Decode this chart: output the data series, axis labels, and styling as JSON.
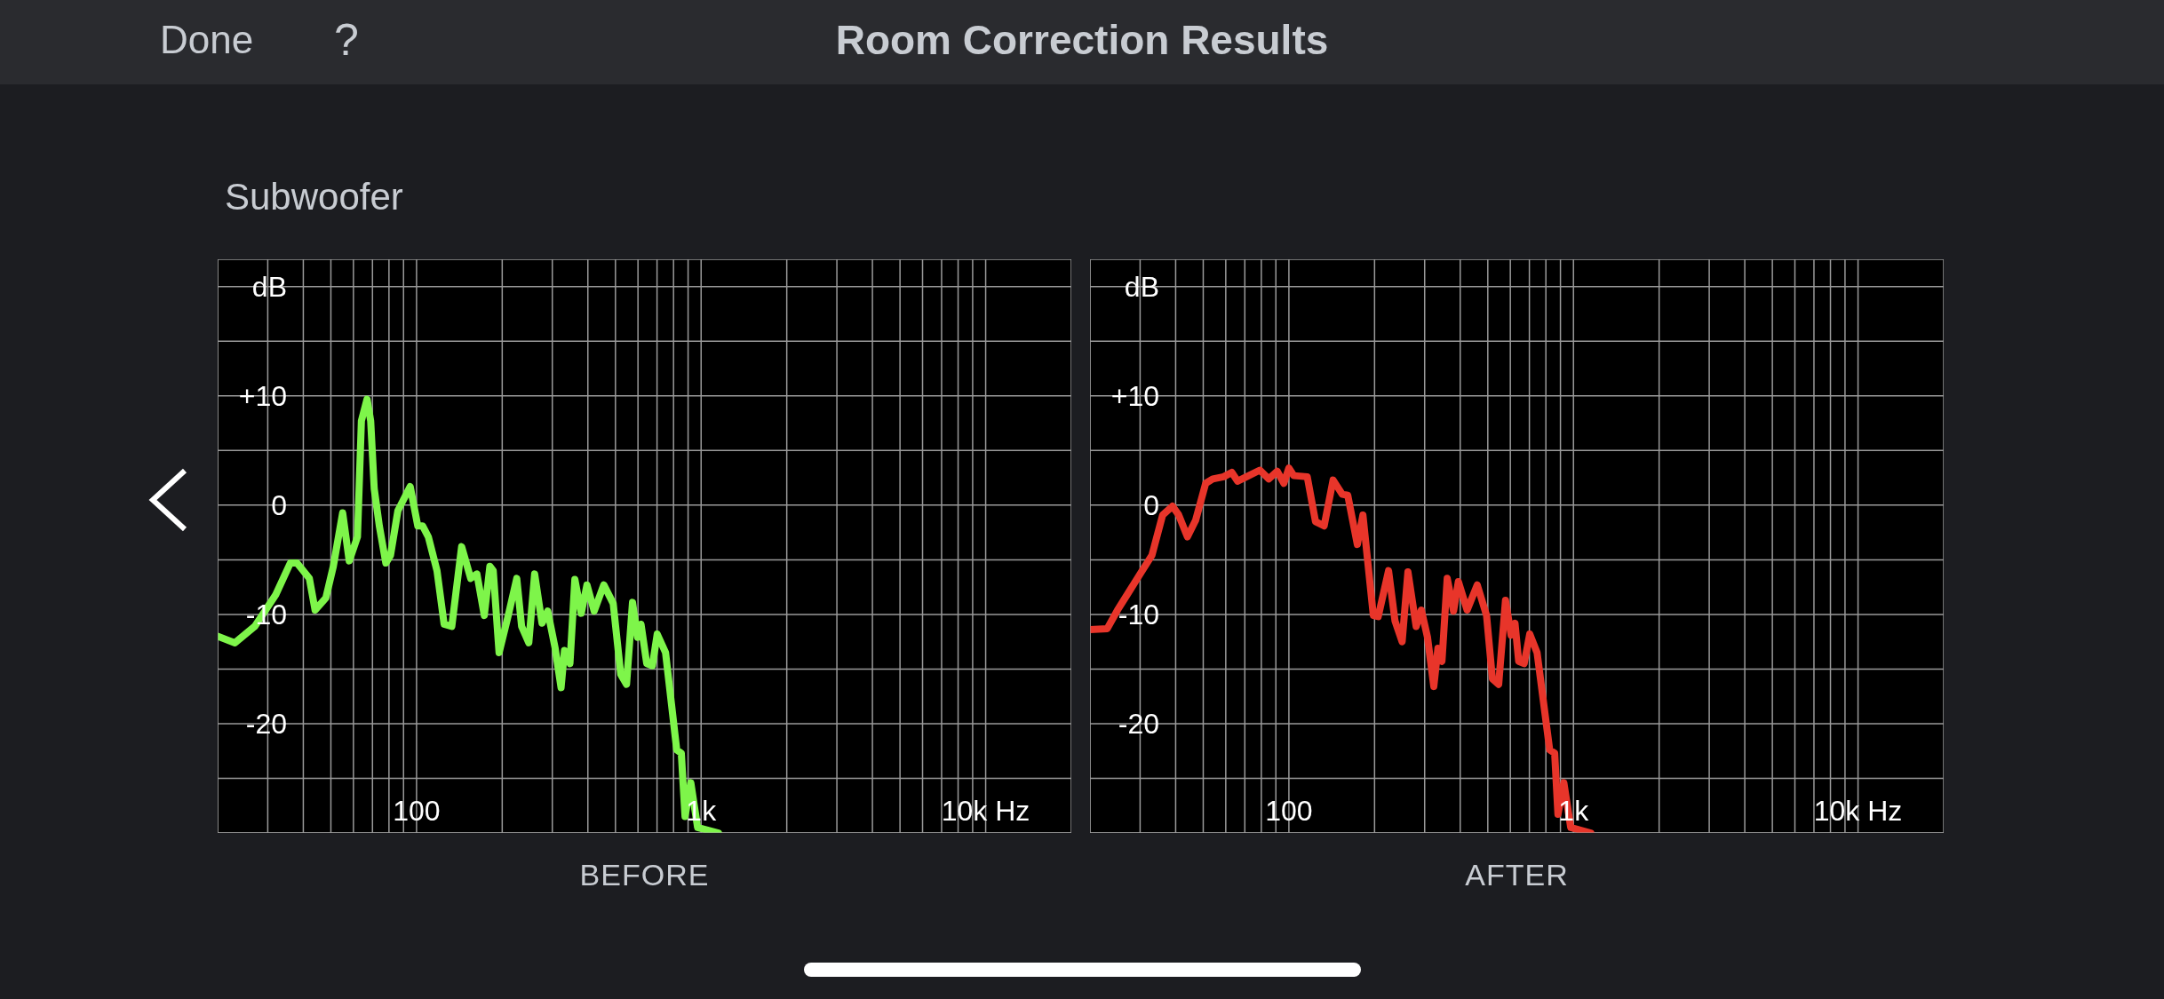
{
  "chart_data": [
    {
      "type": "line",
      "title": "Room Correction Results",
      "subtitle": "Subwoofer",
      "xlabel": "BEFORE",
      "annotations": [
        "Done",
        "?"
      ],
      "log": "x",
      "grid": true,
      "xlim": [
        20,
        20000
      ],
      "xticks": [
        {
          "value": 30,
          "label": null
        },
        {
          "value": 40,
          "label": null
        },
        {
          "value": 50,
          "label": null
        },
        {
          "value": 60,
          "label": null
        },
        {
          "value": 70,
          "label": null
        },
        {
          "value": 80,
          "label": null
        },
        {
          "value": 90,
          "label": null
        },
        100,
        {
          "value": 200,
          "label": null
        },
        {
          "value": 300,
          "label": null
        },
        {
          "value": 400,
          "label": null
        },
        {
          "value": 500,
          "label": null
        },
        {
          "value": 600,
          "label": null
        },
        {
          "value": 700,
          "label": null
        },
        {
          "value": 800,
          "label": null
        },
        {
          "value": 900,
          "label": null
        },
        {
          "value": 1000,
          "label": "1k"
        },
        {
          "value": 2000,
          "label": null
        },
        {
          "value": 3000,
          "label": null
        },
        {
          "value": 4000,
          "label": null
        },
        {
          "value": 5000,
          "label": null
        },
        {
          "value": 6000,
          "label": null
        },
        {
          "value": 7000,
          "label": null
        },
        {
          "value": 8000,
          "label": null
        },
        {
          "value": 9000,
          "label": null
        },
        {
          "value": 10000,
          "label": "10k Hz"
        }
      ],
      "ylim": [
        -30,
        22.5
      ],
      "yticks": [
        {
          "value": 20,
          "label": "dB"
        },
        {
          "value": 15,
          "label": null
        },
        {
          "value": 10,
          "label": "+10"
        },
        {
          "value": 5,
          "label": null
        },
        0,
        {
          "value": -5,
          "label": null
        },
        -10,
        {
          "value": -15,
          "label": null
        },
        -20,
        {
          "value": -25,
          "label": null
        }
      ],
      "series": [
        {
          "color": "#7ef54a",
          "x": [
            20,
            23,
            27,
            32,
            36,
            38,
            42,
            44,
            48,
            51,
            55,
            58,
            62,
            64,
            67,
            69,
            71,
            74,
            78,
            81,
            86,
            95,
            101,
            105,
            110,
            118,
            125,
            133,
            144,
            155,
            163,
            173,
            181,
            186,
            195,
            210,
            225,
            234,
            248,
            260,
            276,
            289,
            307,
            322,
            331,
            346,
            360,
            379,
            397,
            421,
            455,
            491,
            522,
            547,
            574,
            598,
            615,
            644,
            674,
            701,
            750,
            821,
            852,
            878,
            920,
            972,
            1150
          ],
          "values": [
            -12,
            -12.6,
            -11.1,
            -8.2,
            -5.3,
            -5.3,
            -6.7,
            -9.6,
            -8.5,
            -5.6,
            -0.7,
            -5.1,
            -2.9,
            7.7,
            9.7,
            7.7,
            1.5,
            -1.9,
            -5.3,
            -4.6,
            -0.5,
            1.7,
            -1.9,
            -1.9,
            -2.9,
            -6,
            -10.9,
            -11.1,
            -3.8,
            -6.7,
            -6.3,
            -10.1,
            -5.6,
            -6,
            -13.5,
            -10.1,
            -6.7,
            -11.1,
            -12.6,
            -6.3,
            -10.8,
            -9.7,
            -13.1,
            -16.7,
            -13.3,
            -14.5,
            -6.8,
            -9.9,
            -7.3,
            -9.7,
            -7.3,
            -9,
            -15.5,
            -16.4,
            -8.9,
            -12.1,
            -10.9,
            -14.5,
            -14.7,
            -11.8,
            -13.5,
            -22.4,
            -22.7,
            -28.5,
            -25.4,
            -29.5,
            -30
          ]
        }
      ]
    },
    {
      "type": "line",
      "xlabel": "AFTER",
      "log": "x",
      "grid": true,
      "xlim": [
        20,
        20000
      ],
      "xticks": [
        {
          "value": 30,
          "label": null
        },
        {
          "value": 40,
          "label": null
        },
        {
          "value": 50,
          "label": null
        },
        {
          "value": 60,
          "label": null
        },
        {
          "value": 70,
          "label": null
        },
        {
          "value": 80,
          "label": null
        },
        {
          "value": 90,
          "label": null
        },
        100,
        {
          "value": 200,
          "label": null
        },
        {
          "value": 300,
          "label": null
        },
        {
          "value": 400,
          "label": null
        },
        {
          "value": 500,
          "label": null
        },
        {
          "value": 600,
          "label": null
        },
        {
          "value": 700,
          "label": null
        },
        {
          "value": 800,
          "label": null
        },
        {
          "value": 900,
          "label": null
        },
        {
          "value": 1000,
          "label": "1k"
        },
        {
          "value": 2000,
          "label": null
        },
        {
          "value": 3000,
          "label": null
        },
        {
          "value": 4000,
          "label": null
        },
        {
          "value": 5000,
          "label": null
        },
        {
          "value": 6000,
          "label": null
        },
        {
          "value": 7000,
          "label": null
        },
        {
          "value": 8000,
          "label": null
        },
        {
          "value": 9000,
          "label": null
        },
        {
          "value": 10000,
          "label": "10k Hz"
        }
      ],
      "ylim": [
        -30,
        22.5
      ],
      "yticks": [
        {
          "value": 20,
          "label": "dB"
        },
        {
          "value": 15,
          "label": null
        },
        {
          "value": 10,
          "label": "+10"
        },
        {
          "value": 5,
          "label": null
        },
        0,
        {
          "value": -5,
          "label": null
        },
        -10,
        {
          "value": -15,
          "label": null
        },
        -20,
        {
          "value": -25,
          "label": null
        }
      ],
      "series": [
        {
          "color": "#e8352a",
          "x": [
            20,
            23,
            25,
            30,
            33,
            36,
            39,
            41,
            44,
            47,
            51,
            54,
            59,
            63,
            66,
            71,
            79,
            85,
            91,
            96,
            100,
            104,
            116,
            124,
            133,
            143,
            154,
            161,
            174,
            182,
            198,
            206,
            224,
            236,
            250,
            262,
            280,
            292,
            307,
            323,
            334,
            345,
            360,
            379,
            394,
            423,
            459,
            495,
            519,
            546,
            577,
            604,
            623,
            642,
            671,
            702,
            745,
            825,
            859,
            882,
            925,
            978,
            1150
          ],
          "values": [
            -11.4,
            -11.3,
            -9.6,
            -6.3,
            -4.6,
            -0.9,
            -0.1,
            -0.9,
            -2.9,
            -1.4,
            2,
            2.4,
            2.6,
            3,
            2.2,
            2.6,
            3.2,
            2.4,
            3.1,
            2,
            3.4,
            2.7,
            2.6,
            -1.5,
            -1.9,
            2.3,
            1,
            0.9,
            -3.6,
            -0.9,
            -10.1,
            -10.2,
            -6,
            -10.6,
            -12.5,
            -6.1,
            -11.1,
            -9.6,
            -12.1,
            -16.6,
            -13.1,
            -14.3,
            -6.7,
            -9.7,
            -7,
            -9.6,
            -7.3,
            -10.1,
            -15.9,
            -16.4,
            -8.7,
            -11.9,
            -10.8,
            -14.3,
            -14.5,
            -11.8,
            -13.5,
            -22.4,
            -22.7,
            -28.3,
            -25.4,
            -29.5,
            -30
          ]
        }
      ]
    }
  ]
}
